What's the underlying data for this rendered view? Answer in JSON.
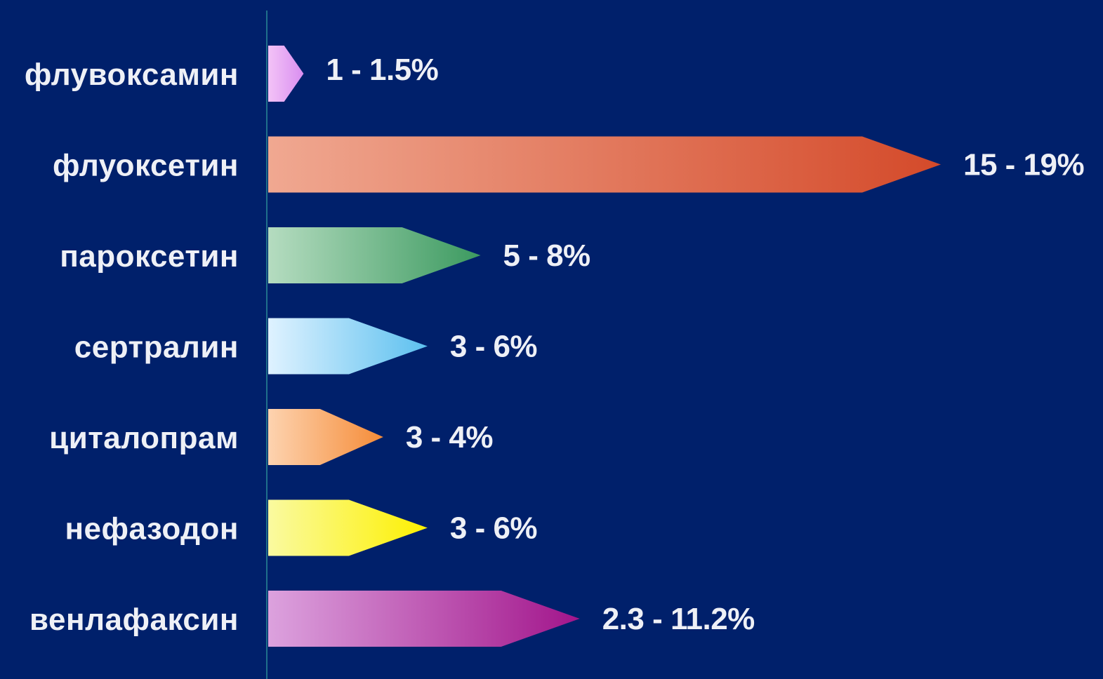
{
  "chart_data": {
    "type": "bar",
    "orientation": "horizontal",
    "grid": false,
    "legend": "none",
    "background": "#00206b",
    "categories": [
      "флувоксамин",
      "флуоксетин",
      "пароксетин",
      "сертралин",
      "циталопрам",
      "нефазодон",
      "венлафаксин"
    ],
    "series": [
      {
        "ranges": [
          [
            1,
            1.5
          ],
          [
            15,
            19
          ],
          [
            5,
            8
          ],
          [
            3,
            6
          ],
          [
            3,
            4
          ],
          [
            3,
            6
          ],
          [
            2.3,
            11.2
          ]
        ],
        "labels": [
          "1 - 1.5%",
          "15 - 19%",
          "5 - 8%",
          "3 - 6%",
          "3 - 4%",
          "3 - 6%",
          "2.3 - 11.2%"
        ],
        "bar_lengths": [
          1,
          19,
          6,
          4.5,
          3.25,
          4.5,
          8.8
        ]
      }
    ],
    "xlim": [
      0,
      19
    ],
    "colors": [
      {
        "light": "#f3c3f7",
        "dark": "#d98ef0"
      },
      {
        "light": "#f0a891",
        "dark": "#d44a2a"
      },
      {
        "light": "#b5dcc0",
        "dark": "#3c9a60"
      },
      {
        "light": "#dff2ff",
        "dark": "#5cc0ef"
      },
      {
        "light": "#fdd3b0",
        "dark": "#f58c38"
      },
      {
        "light": "#fafaa0",
        "dark": "#fdf000"
      },
      {
        "light": "#dca2de",
        "dark": "#a2158b"
      }
    ]
  }
}
